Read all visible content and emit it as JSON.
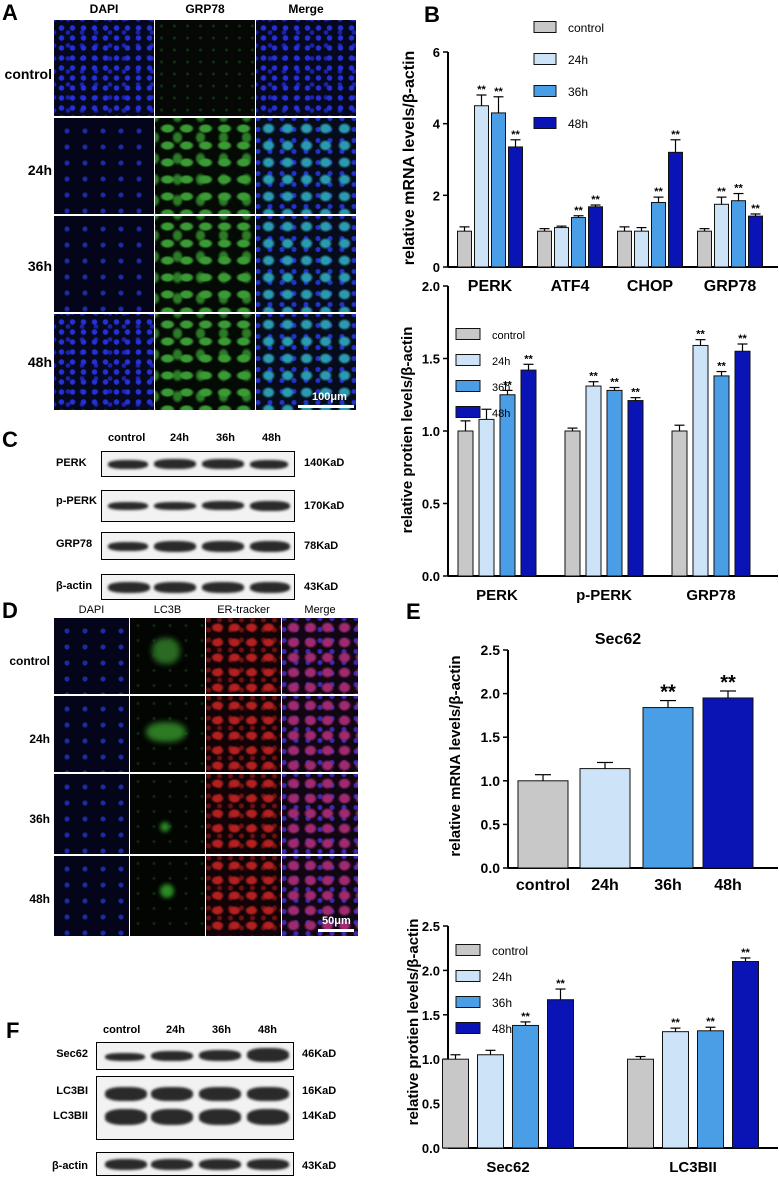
{
  "panels": {
    "A": {
      "label": "A",
      "columns": [
        "DAPI",
        "GRP78",
        "Merge"
      ],
      "rows": [
        "control",
        "24h",
        "36h",
        "48h"
      ],
      "scalebar": "100μm"
    },
    "C": {
      "label": "C",
      "lanes": [
        "control",
        "24h",
        "36h",
        "48h"
      ],
      "proteins": [
        "PERK",
        "p-PERK",
        "GRP78",
        "β-actin"
      ],
      "weights": [
        "140KaD",
        "170KaD",
        "78KaD",
        "43KaD"
      ]
    },
    "D": {
      "label": "D",
      "columns": [
        "DAPI",
        "LC3B",
        "ER-tracker",
        "Merge"
      ],
      "rows": [
        "control",
        "24h",
        "36h",
        "48h"
      ],
      "scalebar": "50μm"
    },
    "F": {
      "label": "F",
      "lanes": [
        "control",
        "24h",
        "36h",
        "48h"
      ],
      "proteins": [
        "Sec62",
        "LC3BI",
        "LC3BII",
        "β-actin"
      ],
      "weights": [
        "46KaD",
        "16KaD",
        "14KaD",
        "43KaD"
      ]
    }
  },
  "series_colors": {
    "control": "#c8c8c8",
    "24h": "#cde3f7",
    "36h": "#4a9ee6",
    "48h": "#0a14b4"
  },
  "chart_data": [
    {
      "panel": "B",
      "type": "bar",
      "ylabel": "relative mRNA levels/β-actin",
      "ylim": [
        0,
        6
      ],
      "yticks": [
        0,
        2,
        4,
        6
      ],
      "categories": [
        "PERK",
        "ATF4",
        "CHOP",
        "GRP78"
      ],
      "series": [
        {
          "name": "control",
          "values": [
            1.0,
            1.0,
            1.0,
            1.0
          ],
          "errors": [
            0.12,
            0.07,
            0.12,
            0.07
          ],
          "stars": [
            "",
            "",
            "",
            ""
          ]
        },
        {
          "name": "24h",
          "values": [
            4.5,
            1.1,
            1.0,
            1.75
          ],
          "errors": [
            0.3,
            0.04,
            0.1,
            0.2
          ],
          "stars": [
            "**",
            "",
            "",
            "**"
          ]
        },
        {
          "name": "36h",
          "values": [
            4.3,
            1.38,
            1.8,
            1.85
          ],
          "errors": [
            0.45,
            0.05,
            0.15,
            0.2
          ],
          "stars": [
            "**",
            "**",
            "**",
            "**"
          ]
        },
        {
          "name": "48h",
          "values": [
            3.35,
            1.68,
            3.2,
            1.42
          ],
          "errors": [
            0.2,
            0.05,
            0.35,
            0.06
          ],
          "stars": [
            "**",
            "**",
            "**",
            "**"
          ]
        }
      ],
      "legend": "top-right"
    },
    {
      "panel": "C",
      "type": "bar",
      "ylabel": "relative protien levels/β-actin",
      "ylim": [
        0,
        2.0
      ],
      "yticks": [
        0.0,
        0.5,
        1.0,
        1.5,
        2.0
      ],
      "categories": [
        "PERK",
        "p-PERK",
        "GRP78"
      ],
      "series": [
        {
          "name": "control",
          "values": [
            1.0,
            1.0,
            1.0
          ],
          "errors": [
            0.07,
            0.02,
            0.04
          ],
          "stars": [
            "",
            "",
            ""
          ]
        },
        {
          "name": "24h",
          "values": [
            1.08,
            1.31,
            1.59
          ],
          "errors": [
            0.07,
            0.03,
            0.04
          ],
          "stars": [
            "",
            "**",
            "**"
          ]
        },
        {
          "name": "36h",
          "values": [
            1.25,
            1.28,
            1.38
          ],
          "errors": [
            0.03,
            0.02,
            0.03
          ],
          "stars": [
            "**",
            "**",
            "**"
          ]
        },
        {
          "name": "48h",
          "values": [
            1.42,
            1.21,
            1.55
          ],
          "errors": [
            0.04,
            0.02,
            0.05
          ],
          "stars": [
            "**",
            "**",
            "**"
          ]
        }
      ],
      "legend": "top-left"
    },
    {
      "panel": "E",
      "type": "bar",
      "title": "Sec62",
      "ylabel": "relative mRNA levels/β-actin",
      "ylim": [
        0,
        2.5
      ],
      "yticks": [
        0.0,
        0.5,
        1.0,
        1.5,
        2.0,
        2.5
      ],
      "categories": [
        "control",
        "24h",
        "36h",
        "48h"
      ],
      "values": [
        1.0,
        1.14,
        1.84,
        1.95
      ],
      "errors": [
        0.07,
        0.07,
        0.08,
        0.08
      ],
      "stars": [
        "",
        "",
        "**",
        "**"
      ]
    },
    {
      "panel": "F",
      "type": "bar",
      "ylabel": "relative protien levels/β-actin",
      "ylim": [
        0,
        2.5
      ],
      "yticks": [
        0.0,
        0.5,
        1.0,
        1.5,
        2.0,
        2.5
      ],
      "categories": [
        "Sec62",
        "LC3BII"
      ],
      "series": [
        {
          "name": "control",
          "values": [
            1.0,
            1.0
          ],
          "errors": [
            0.05,
            0.03
          ],
          "stars": [
            "",
            ""
          ]
        },
        {
          "name": "24h",
          "values": [
            1.05,
            1.31
          ],
          "errors": [
            0.05,
            0.04
          ],
          "stars": [
            "",
            "**"
          ]
        },
        {
          "name": "36h",
          "values": [
            1.38,
            1.32
          ],
          "errors": [
            0.04,
            0.04
          ],
          "stars": [
            "**",
            "**"
          ]
        },
        {
          "name": "48h",
          "values": [
            1.67,
            2.1
          ],
          "errors": [
            0.12,
            0.04
          ],
          "stars": [
            "**",
            "**"
          ]
        }
      ],
      "legend": "top-left"
    }
  ]
}
